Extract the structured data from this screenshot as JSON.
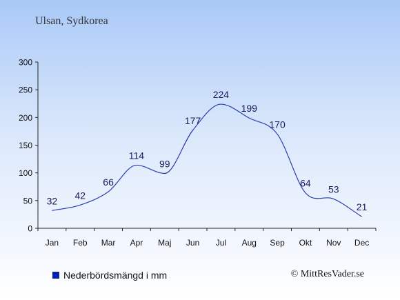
{
  "header": {
    "location": "Ulsan, Sydkorea"
  },
  "legend": {
    "label": "Nederbördsmängd i mm"
  },
  "footer": {
    "copyright": "© MittResVader.se"
  },
  "colors": {
    "line": "#2a3db0",
    "legend_swatch": "#0a1fa8",
    "axis": "#222222",
    "label": "#1a1a60"
  },
  "chart_data": {
    "type": "line",
    "categories": [
      "Jan",
      "Feb",
      "Mar",
      "Apr",
      "Maj",
      "Jun",
      "Jul",
      "Aug",
      "Sep",
      "Okt",
      "Nov",
      "Dec"
    ],
    "series": [
      {
        "name": "Nederbördsmängd i mm",
        "values": [
          32,
          42,
          66,
          114,
          99,
          177,
          224,
          199,
          170,
          64,
          53,
          21
        ]
      }
    ],
    "data_labels": [
      "32",
      "42",
      "66",
      "114",
      "99",
      "177",
      "224",
      "199",
      "170",
      "64",
      "53",
      "21"
    ],
    "yticks": [
      0,
      50,
      100,
      150,
      200,
      250,
      300
    ],
    "ylim": [
      0,
      300
    ],
    "grid": false,
    "legend_position": "bottom-left"
  }
}
